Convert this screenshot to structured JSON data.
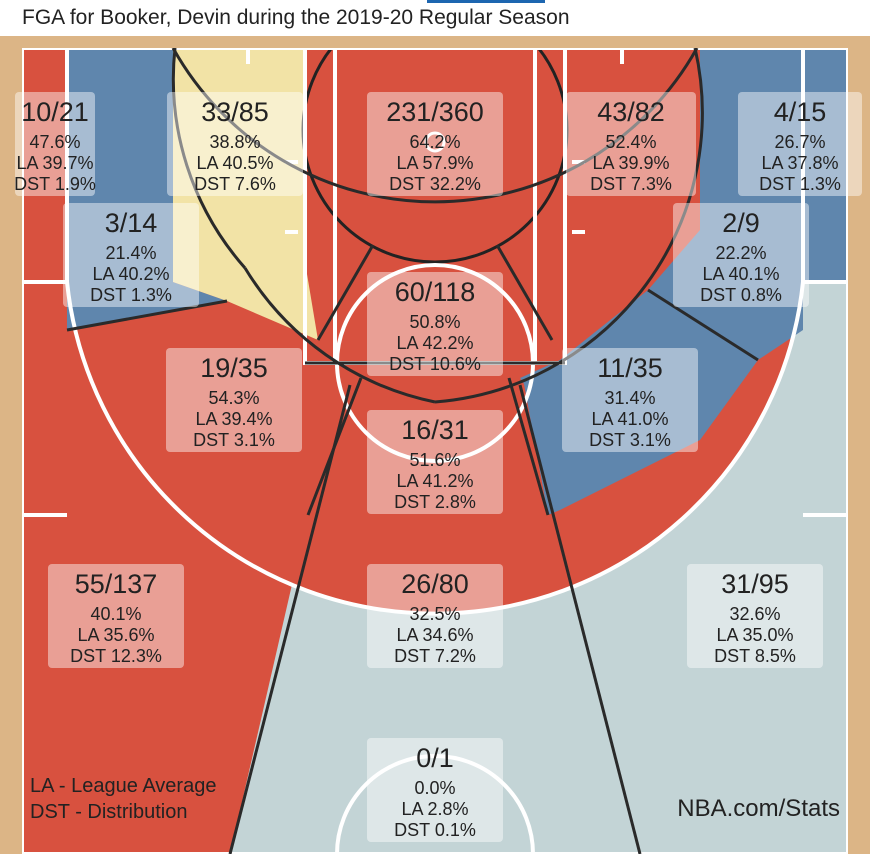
{
  "title": "FGA for Booker, Devin during the 2019-20 Regular Season",
  "legend": {
    "la": "LA - League Average",
    "dst": "DST - Distribution"
  },
  "watermark": "NBA.com/Stats",
  "colors": {
    "above": "#d8513f",
    "below": "#5f86ad",
    "average": "#f2e3a6",
    "neutral": "#c3d4d6",
    "floor": "#dcb586"
  },
  "chart_data": {
    "type": "heatmap",
    "title": "FGA for Booker, Devin during the 2019-20 Regular Season",
    "zones": [
      {
        "id": "left-corner-3",
        "fg": "10/21",
        "pct": "47.6%",
        "la": "LA 39.7%",
        "dst": "DST 1.9%",
        "status": "above"
      },
      {
        "id": "left-wing-mid-long",
        "fg": "33/85",
        "pct": "38.8%",
        "la": "LA 40.5%",
        "dst": "DST 7.6%",
        "status": "average"
      },
      {
        "id": "restricted-area",
        "fg": "231/360",
        "pct": "64.2%",
        "la": "LA 57.9%",
        "dst": "DST 32.2%",
        "status": "above"
      },
      {
        "id": "right-wing-mid-long",
        "fg": "43/82",
        "pct": "52.4%",
        "la": "LA 39.9%",
        "dst": "DST 7.3%",
        "status": "above"
      },
      {
        "id": "right-corner-3",
        "fg": "4/15",
        "pct": "26.7%",
        "la": "LA 37.8%",
        "dst": "DST 1.3%",
        "status": "below"
      },
      {
        "id": "left-baseline-mid",
        "fg": "3/14",
        "pct": "21.4%",
        "la": "LA 40.2%",
        "dst": "DST 1.3%",
        "status": "below"
      },
      {
        "id": "right-baseline-mid",
        "fg": "2/9",
        "pct": "22.2%",
        "la": "LA 40.1%",
        "dst": "DST 0.8%",
        "status": "below"
      },
      {
        "id": "paint-non-ra",
        "fg": "60/118",
        "pct": "50.8%",
        "la": "LA 42.2%",
        "dst": "DST 10.6%",
        "status": "above"
      },
      {
        "id": "left-elbow-mid",
        "fg": "19/35",
        "pct": "54.3%",
        "la": "LA 39.4%",
        "dst": "DST 3.1%",
        "status": "above"
      },
      {
        "id": "right-elbow-mid",
        "fg": "11/35",
        "pct": "31.4%",
        "la": "LA 41.0%",
        "dst": "DST 3.1%",
        "status": "below"
      },
      {
        "id": "top-key-mid",
        "fg": "16/31",
        "pct": "51.6%",
        "la": "LA 41.2%",
        "dst": "DST 2.8%",
        "status": "above"
      },
      {
        "id": "left-wing-3",
        "fg": "55/137",
        "pct": "40.1%",
        "la": "LA 35.6%",
        "dst": "DST 12.3%",
        "status": "above"
      },
      {
        "id": "top-key-3",
        "fg": "26/80",
        "pct": "32.5%",
        "la": "LA 34.6%",
        "dst": "DST 7.2%",
        "status": "neutral"
      },
      {
        "id": "right-wing-3",
        "fg": "31/95",
        "pct": "32.6%",
        "la": "LA 35.0%",
        "dst": "DST 8.5%",
        "status": "neutral"
      },
      {
        "id": "backcourt",
        "fg": "0/1",
        "pct": "0.0%",
        "la": "LA 2.8%",
        "dst": "DST 0.1%",
        "status": "neutral"
      }
    ]
  }
}
